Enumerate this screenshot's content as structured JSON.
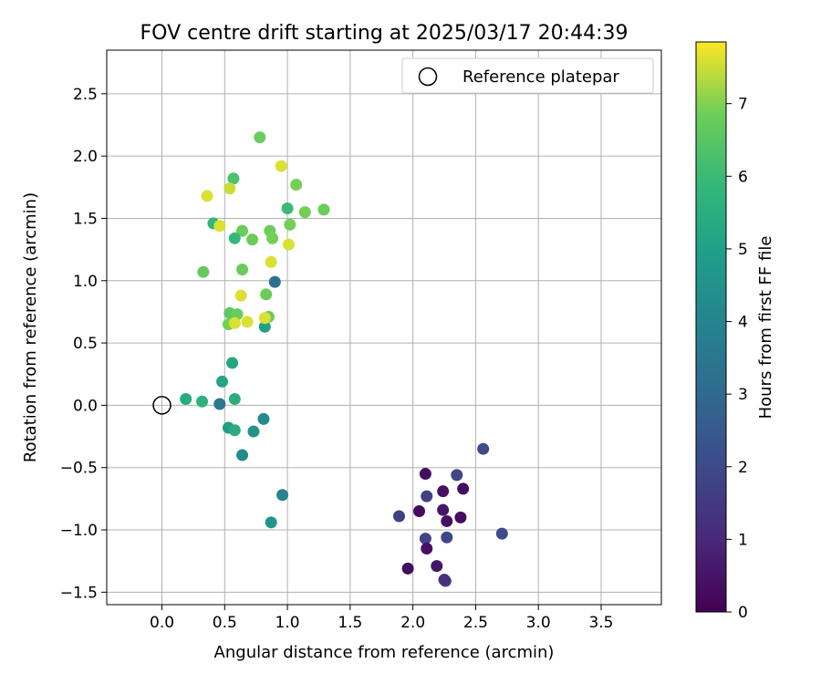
{
  "chart_data": {
    "type": "scatter",
    "title": "FOV centre drift starting at 2025/03/17 20:44:39",
    "xlabel": "Angular distance from reference (arcmin)",
    "ylabel": "Rotation from reference (arcmin)",
    "xlim": [
      -0.44,
      3.98
    ],
    "ylim": [
      -1.6,
      2.85
    ],
    "xticks": [
      "0.0",
      "0.5",
      "1.0",
      "1.5",
      "2.0",
      "2.5",
      "3.0",
      "3.5"
    ],
    "xtick_values": [
      0.0,
      0.5,
      1.0,
      1.5,
      2.0,
      2.5,
      3.0,
      3.5
    ],
    "yticks": [
      "−1.5",
      "−1.0",
      "−0.5",
      "0.0",
      "0.5",
      "1.0",
      "1.5",
      "2.0",
      "2.5"
    ],
    "ytick_values": [
      -1.5,
      -1.0,
      -0.5,
      0.0,
      0.5,
      1.0,
      1.5,
      2.0,
      2.5
    ],
    "grid": true,
    "legend": {
      "position": "top-right",
      "entries": [
        "Reference platepar"
      ]
    },
    "reference_point": {
      "x": 0.0,
      "y": 0.0
    },
    "colorbar": {
      "label": "Hours from first FF file",
      "colormap": "viridis",
      "range": [
        0,
        7.85
      ],
      "ticks": [
        "0",
        "1",
        "2",
        "3",
        "4",
        "5",
        "6",
        "7"
      ],
      "tick_values": [
        0,
        1,
        2,
        3,
        4,
        5,
        6,
        7
      ]
    },
    "points": [
      {
        "x": 2.35,
        "y": -0.56,
        "c": 1.85
      },
      {
        "x": 2.56,
        "y": -0.35,
        "c": 2.0
      },
      {
        "x": 2.71,
        "y": -1.03,
        "c": 2.0
      },
      {
        "x": 1.89,
        "y": -0.89,
        "c": 1.7
      },
      {
        "x": 2.11,
        "y": -0.73,
        "c": 1.7
      },
      {
        "x": 2.1,
        "y": -1.07,
        "c": 1.8
      },
      {
        "x": 2.27,
        "y": -1.06,
        "c": 1.9
      },
      {
        "x": 2.26,
        "y": -1.41,
        "c": 1.8
      },
      {
        "x": 2.25,
        "y": -1.4,
        "c": 1.2
      },
      {
        "x": 2.1,
        "y": -0.55,
        "c": 0.3
      },
      {
        "x": 2.24,
        "y": -0.69,
        "c": 0.4
      },
      {
        "x": 2.4,
        "y": -0.67,
        "c": 0.3
      },
      {
        "x": 2.05,
        "y": -0.85,
        "c": 0.3
      },
      {
        "x": 2.24,
        "y": -0.84,
        "c": 0.5
      },
      {
        "x": 2.27,
        "y": -0.93,
        "c": 0.4
      },
      {
        "x": 2.38,
        "y": -0.9,
        "c": 0.3
      },
      {
        "x": 2.11,
        "y": -1.15,
        "c": 0.4
      },
      {
        "x": 2.19,
        "y": -1.29,
        "c": 0.5
      },
      {
        "x": 1.96,
        "y": -1.31,
        "c": 0.3
      },
      {
        "x": 0.19,
        "y": 0.05,
        "c": 5.4
      },
      {
        "x": 0.32,
        "y": 0.03,
        "c": 5.6
      },
      {
        "x": 0.46,
        "y": 0.01,
        "c": 3.5
      },
      {
        "x": 0.48,
        "y": 0.19,
        "c": 5.2
      },
      {
        "x": 0.56,
        "y": 0.34,
        "c": 5.2
      },
      {
        "x": 0.58,
        "y": 0.05,
        "c": 5.5
      },
      {
        "x": 0.53,
        "y": -0.18,
        "c": 5.0
      },
      {
        "x": 0.58,
        "y": -0.2,
        "c": 5.4
      },
      {
        "x": 0.73,
        "y": -0.21,
        "c": 4.5
      },
      {
        "x": 0.81,
        "y": -0.11,
        "c": 4.2
      },
      {
        "x": 0.64,
        "y": -0.4,
        "c": 4.3
      },
      {
        "x": 0.96,
        "y": -0.72,
        "c": 4.0
      },
      {
        "x": 0.87,
        "y": -0.94,
        "c": 4.6
      },
      {
        "x": 0.82,
        "y": 0.63,
        "c": 5.0
      },
      {
        "x": 0.9,
        "y": 0.99,
        "c": 3.2
      },
      {
        "x": 0.78,
        "y": 2.15,
        "c": 6.8
      },
      {
        "x": 0.95,
        "y": 1.92,
        "c": 7.6
      },
      {
        "x": 0.57,
        "y": 1.82,
        "c": 6.3
      },
      {
        "x": 1.07,
        "y": 1.77,
        "c": 6.9
      },
      {
        "x": 0.36,
        "y": 1.68,
        "c": 7.6
      },
      {
        "x": 0.54,
        "y": 1.74,
        "c": 7.5
      },
      {
        "x": 1.0,
        "y": 1.58,
        "c": 6.0
      },
      {
        "x": 1.14,
        "y": 1.55,
        "c": 6.9
      },
      {
        "x": 1.29,
        "y": 1.57,
        "c": 6.8
      },
      {
        "x": 0.41,
        "y": 1.46,
        "c": 5.8
      },
      {
        "x": 0.46,
        "y": 1.44,
        "c": 7.6
      },
      {
        "x": 1.02,
        "y": 1.45,
        "c": 6.9
      },
      {
        "x": 0.64,
        "y": 1.4,
        "c": 6.8
      },
      {
        "x": 0.86,
        "y": 1.4,
        "c": 6.8
      },
      {
        "x": 0.58,
        "y": 1.34,
        "c": 5.9
      },
      {
        "x": 0.72,
        "y": 1.33,
        "c": 6.8
      },
      {
        "x": 0.88,
        "y": 1.34,
        "c": 6.9
      },
      {
        "x": 1.01,
        "y": 1.29,
        "c": 7.6
      },
      {
        "x": 0.87,
        "y": 1.15,
        "c": 7.6
      },
      {
        "x": 0.33,
        "y": 1.07,
        "c": 6.7
      },
      {
        "x": 0.64,
        "y": 1.09,
        "c": 6.8
      },
      {
        "x": 0.63,
        "y": 0.88,
        "c": 7.6
      },
      {
        "x": 0.83,
        "y": 0.89,
        "c": 6.8
      },
      {
        "x": 0.54,
        "y": 0.74,
        "c": 6.6
      },
      {
        "x": 0.6,
        "y": 0.73,
        "c": 6.8
      },
      {
        "x": 0.85,
        "y": 0.71,
        "c": 6.8
      },
      {
        "x": 0.82,
        "y": 0.7,
        "c": 7.6
      },
      {
        "x": 0.53,
        "y": 0.65,
        "c": 6.9
      },
      {
        "x": 0.58,
        "y": 0.66,
        "c": 7.6
      },
      {
        "x": 0.68,
        "y": 0.67,
        "c": 7.6
      }
    ]
  }
}
